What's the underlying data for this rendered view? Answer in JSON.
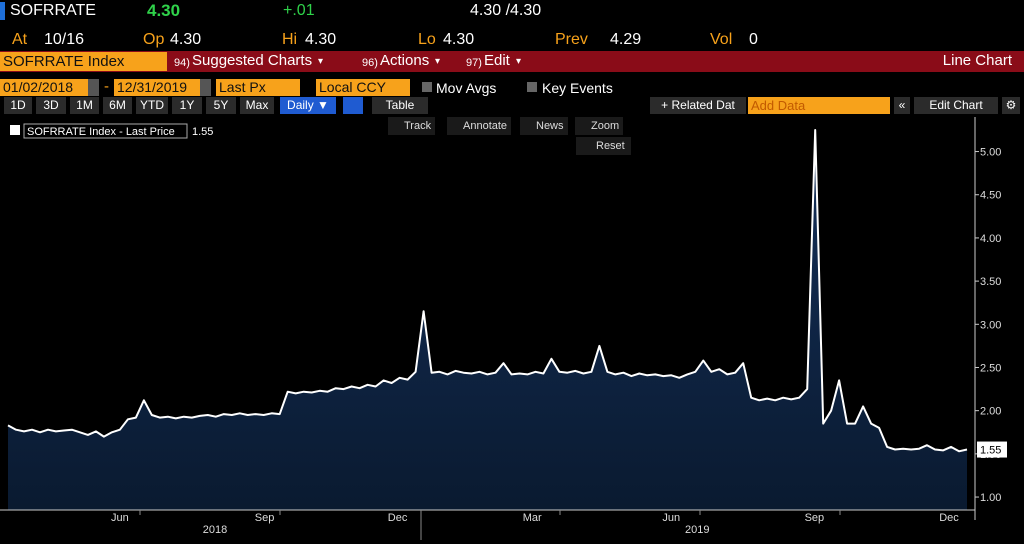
{
  "header": {
    "ticker": "SOFRRATE",
    "last": "4.30",
    "change": "+.01",
    "bid_ask": "4.30 /4.30",
    "stats": [
      {
        "label": "At",
        "value": "10/16"
      },
      {
        "label": "Op",
        "value": "4.30"
      },
      {
        "label": "Hi",
        "value": "4.30"
      },
      {
        "label": "Lo",
        "value": "4.30"
      },
      {
        "label": "Prev",
        "value": "4.29"
      },
      {
        "label": "Vol",
        "value": "0"
      }
    ]
  },
  "menu": {
    "security": "SOFRRATE Index",
    "items": [
      {
        "num": "94)",
        "label": "Suggested Charts"
      },
      {
        "num": "96)",
        "label": "Actions"
      },
      {
        "num": "97)",
        "label": "Edit"
      }
    ],
    "view": "Line Chart"
  },
  "settings": {
    "start": "01/02/2018",
    "separator": "-",
    "end": "12/31/2019",
    "field": "Last Px",
    "currency": "Local CCY",
    "mov_avgs": "Mov Avgs",
    "key_events": "Key Events"
  },
  "toolbar": {
    "periods": [
      "1D",
      "3D",
      "1M",
      "6M",
      "YTD",
      "1Y",
      "5Y",
      "Max"
    ],
    "frequency": "Daily ▼",
    "table": "Table",
    "related": "+ Related Dat",
    "add_data": "Add Data",
    "edit_chart": "Edit Chart"
  },
  "chart_tools": {
    "items": [
      "Track",
      "Annotate",
      "News",
      "Zoom"
    ],
    "reset": "Reset"
  },
  "chart_data": {
    "type": "area",
    "legend_label": "SOFRRATE Index - Last Price",
    "series": [
      {
        "name": "SOFRRATE Index - Last Price",
        "color": "#ffffff",
        "fill": "#0d2340",
        "values": [
          1.83,
          1.78,
          1.76,
          1.78,
          1.75,
          1.78,
          1.76,
          1.77,
          1.78,
          1.75,
          1.72,
          1.76,
          1.7,
          1.75,
          1.78,
          1.9,
          1.92,
          2.12,
          1.95,
          1.92,
          1.93,
          1.91,
          1.93,
          1.92,
          1.94,
          1.95,
          1.93,
          1.96,
          1.95,
          1.97,
          1.95,
          1.96,
          1.95,
          1.97,
          1.96,
          2.22,
          2.2,
          2.22,
          2.21,
          2.23,
          2.22,
          2.26,
          2.25,
          2.28,
          2.26,
          2.3,
          2.28,
          2.35,
          2.32,
          2.38,
          2.36,
          2.45,
          3.15,
          2.44,
          2.45,
          2.42,
          2.46,
          2.44,
          2.43,
          2.45,
          2.42,
          2.44,
          2.55,
          2.42,
          2.43,
          2.42,
          2.45,
          2.43,
          2.6,
          2.45,
          2.44,
          2.46,
          2.43,
          2.45,
          2.75,
          2.45,
          2.42,
          2.44,
          2.4,
          2.43,
          2.41,
          2.42,
          2.4,
          2.41,
          2.38,
          2.42,
          2.45,
          2.58,
          2.45,
          2.48,
          2.42,
          2.44,
          2.55,
          2.15,
          2.12,
          2.14,
          2.12,
          2.15,
          2.13,
          2.15,
          2.25,
          5.25,
          1.85,
          2.0,
          2.35,
          1.85,
          1.85,
          2.05,
          1.85,
          1.8,
          1.58,
          1.55,
          1.56,
          1.55,
          1.56,
          1.6,
          1.55,
          1.54,
          1.58,
          1.53,
          1.55
        ]
      }
    ],
    "xlim": [
      -1,
      121
    ],
    "xticks": [
      {
        "value": 14,
        "label": "Jun"
      },
      {
        "value": 32.1,
        "label": "Sep"
      },
      {
        "value": 48.75,
        "label": "Dec"
      },
      {
        "value": 65.6,
        "label": "Mar"
      },
      {
        "value": 83,
        "label": "Jun"
      },
      {
        "value": 100.9,
        "label": "Sep"
      },
      {
        "value": 117.75,
        "label": "Dec"
      }
    ],
    "year_ticks": [
      {
        "value": 25.9,
        "label": "2018"
      },
      {
        "value": 86.25,
        "label": "2019"
      }
    ],
    "ylim": [
      0.85,
      5.4
    ],
    "yticks": [
      {
        "value": 1,
        "label": "1.00"
      },
      {
        "value": 1.5,
        "label": "1.50"
      },
      {
        "value": 2,
        "label": "2.00"
      },
      {
        "value": 2.5,
        "label": "2.50"
      },
      {
        "value": 3,
        "label": "3.00"
      },
      {
        "value": 3.5,
        "label": "3.50"
      },
      {
        "value": 4,
        "label": "4.00"
      },
      {
        "value": 4.5,
        "label": "4.50"
      },
      {
        "value": 5,
        "label": "5.00"
      }
    ]
  }
}
